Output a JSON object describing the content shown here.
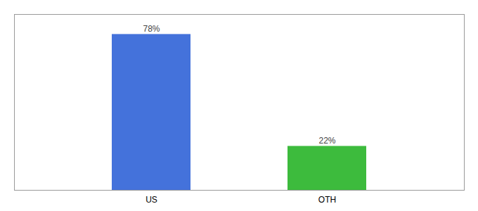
{
  "chart_data": {
    "type": "bar",
    "categories": [
      "US",
      "OTH"
    ],
    "values": [
      78,
      22
    ],
    "value_labels": [
      "78%",
      "22%"
    ],
    "colors": [
      "#4472db",
      "#3dbb3d"
    ],
    "ylim": [
      0,
      88
    ],
    "data_labels": true,
    "tick_labels": "x"
  }
}
